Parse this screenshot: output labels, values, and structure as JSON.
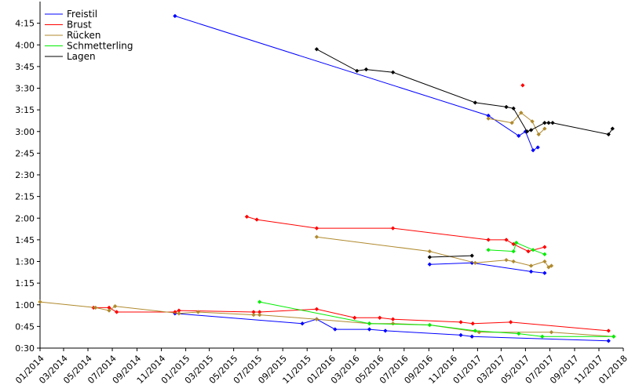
{
  "chart_data": {
    "type": "line",
    "title": "",
    "xlabel": "",
    "ylabel": "",
    "x_range": [
      "2014-01-01",
      "2018-01-01"
    ],
    "y_range": [
      "0:30",
      "4:30"
    ],
    "grid": false,
    "legend_position": "top-left",
    "x_tick_labels": [
      "01/2014",
      "03/2014",
      "05/2014",
      "07/2014",
      "09/2014",
      "11/2014",
      "01/2015",
      "03/2015",
      "05/2015",
      "07/2015",
      "09/2015",
      "11/2015",
      "01/2016",
      "03/2016",
      "05/2016",
      "07/2016",
      "09/2016",
      "11/2016",
      "01/2017",
      "03/2017",
      "05/2017",
      "07/2017",
      "09/2017",
      "11/2017",
      "01/2018"
    ],
    "y_tick_labels": [
      "0:30",
      "0:45",
      "1:00",
      "1:15",
      "1:30",
      "1:45",
      "2:00",
      "2:15",
      "2:30",
      "2:45",
      "3:00",
      "3:15",
      "3:30",
      "3:45",
      "4:00",
      "4:15"
    ],
    "series": [
      {
        "name": "Freistil",
        "color": "#0000ff",
        "lines": [
          {
            "points": [
              [
                "2014-12-05",
                "4:20"
              ],
              [
                "2017-01-28",
                "3:11"
              ],
              [
                "2017-04-14",
                "2:57"
              ],
              [
                "2017-05-01",
                "3:00"
              ],
              [
                "2017-05-20",
                "2:47"
              ],
              [
                "2017-06-01",
                "2:49"
              ]
            ]
          },
          {
            "points": [
              [
                "2016-09-03",
                "1:28"
              ],
              [
                "2016-12-18",
                "1:29"
              ],
              [
                "2017-05-15",
                "1:23"
              ],
              [
                "2017-06-18",
                "1:22"
              ]
            ]
          },
          {
            "points": [
              [
                "2014-12-05",
                "0:54"
              ],
              [
                "2015-10-20",
                "0:47"
              ],
              [
                "2015-11-25",
                "0:50"
              ],
              [
                "2016-01-10",
                "0:43"
              ],
              [
                "2016-04-05",
                "0:43"
              ],
              [
                "2016-05-15",
                "0:42"
              ],
              [
                "2016-11-20",
                "0:39"
              ],
              [
                "2016-12-18",
                "0:38"
              ],
              [
                "2017-11-25",
                "0:35"
              ]
            ]
          }
        ]
      },
      {
        "name": "Brust",
        "color": "#ff0000",
        "lines": [
          {
            "points": [
              [
                "2015-06-03",
                "2:01"
              ],
              [
                "2015-06-28",
                "1:59"
              ],
              [
                "2015-11-25",
                "1:53"
              ],
              [
                "2016-06-03",
                "1:53"
              ],
              [
                "2017-01-28",
                "1:45"
              ],
              [
                "2017-03-14",
                "1:45"
              ],
              [
                "2017-04-01",
                "1:42"
              ],
              [
                "2017-05-08",
                "1:37"
              ],
              [
                "2017-06-18",
                "1:40"
              ]
            ]
          },
          {
            "points": [
              [
                "2017-04-24",
                "3:32"
              ]
            ]
          },
          {
            "points": [
              [
                "2014-05-15",
                "0:58"
              ],
              [
                "2014-06-23",
                "0:58"
              ],
              [
                "2014-07-12",
                "0:55"
              ],
              [
                "2014-12-05",
                "0:55"
              ],
              [
                "2014-12-15",
                "0:56"
              ],
              [
                "2015-06-20",
                "0:55"
              ],
              [
                "2015-07-05",
                "0:55"
              ],
              [
                "2015-11-25",
                "0:57"
              ],
              [
                "2016-02-28",
                "0:51"
              ],
              [
                "2016-05-01",
                "0:51"
              ],
              [
                "2016-06-03",
                "0:50"
              ],
              [
                "2016-11-20",
                "0:48"
              ],
              [
                "2016-12-20",
                "0:47"
              ],
              [
                "2017-03-25",
                "0:48"
              ],
              [
                "2017-11-25",
                "0:42"
              ]
            ]
          }
        ]
      },
      {
        "name": "Rücken",
        "color": "#b08a2e",
        "lines": [
          {
            "points": [
              [
                "2017-01-28",
                "3:09"
              ],
              [
                "2017-03-28",
                "3:06"
              ],
              [
                "2017-04-20",
                "3:13"
              ],
              [
                "2017-05-18",
                "3:07"
              ],
              [
                "2017-06-03",
                "2:58"
              ],
              [
                "2017-06-18",
                "3:02"
              ]
            ]
          },
          {
            "points": [
              [
                "2015-11-25",
                "1:47"
              ],
              [
                "2016-09-03",
                "1:37"
              ],
              [
                "2016-12-26",
                "1:29"
              ],
              [
                "2017-03-14",
                "1:31"
              ],
              [
                "2017-04-01",
                "1:30"
              ],
              [
                "2017-05-15",
                "1:27"
              ],
              [
                "2017-06-18",
                "1:30"
              ],
              [
                "2017-06-28",
                "1:26"
              ],
              [
                "2017-07-05",
                "1:27"
              ]
            ]
          },
          {
            "points": [
              [
                "2014-01-01",
                "1:02"
              ],
              [
                "2014-05-20",
                "0:58"
              ],
              [
                "2014-06-23",
                "0:56"
              ],
              [
                "2014-07-08",
                "0:59"
              ],
              [
                "2014-12-15",
                "0:54"
              ],
              [
                "2015-02-01",
                "0:55"
              ],
              [
                "2015-06-20",
                "0:53"
              ],
              [
                "2015-07-05",
                "0:53"
              ],
              [
                "2015-11-25",
                "0:50"
              ],
              [
                "2016-04-05",
                "0:47"
              ],
              [
                "2016-06-03",
                "0:47"
              ],
              [
                "2016-09-03",
                "0:46"
              ],
              [
                "2017-01-05",
                "0:41"
              ],
              [
                "2017-07-05",
                "0:41"
              ],
              [
                "2017-12-08",
                "0:38"
              ]
            ]
          }
        ]
      },
      {
        "name": "Schmetterling",
        "color": "#00ee00",
        "lines": [
          {
            "points": [
              [
                "2017-01-28",
                "1:38"
              ],
              [
                "2017-04-01",
                "1:37"
              ],
              [
                "2017-04-08",
                "1:43"
              ],
              [
                "2017-05-20",
                "1:38"
              ],
              [
                "2017-06-18",
                "1:35"
              ]
            ]
          },
          {
            "points": [
              [
                "2015-07-05",
                "1:02"
              ],
              [
                "2016-04-05",
                "0:47"
              ],
              [
                "2016-09-03",
                "0:46"
              ],
              [
                "2016-12-26",
                "0:42"
              ],
              [
                "2017-04-14",
                "0:40"
              ],
              [
                "2017-06-12",
                "0:38"
              ],
              [
                "2017-12-08",
                "0:38"
              ]
            ]
          }
        ]
      },
      {
        "name": "Lagen",
        "color": "#000000",
        "lines": [
          {
            "points": [
              [
                "2015-11-25",
                "3:57"
              ],
              [
                "2016-03-05",
                "3:42"
              ],
              [
                "2016-03-28",
                "3:43"
              ],
              [
                "2016-06-03",
                "3:41"
              ],
              [
                "2016-12-26",
                "3:20"
              ],
              [
                "2017-03-14",
                "3:17"
              ],
              [
                "2017-04-01",
                "3:16"
              ],
              [
                "2017-05-05",
                "3:00"
              ],
              [
                "2017-05-15",
                "3:01"
              ],
              [
                "2017-06-18",
                "3:06"
              ],
              [
                "2017-06-28",
                "3:06"
              ],
              [
                "2017-07-08",
                "3:06"
              ],
              [
                "2017-11-25",
                "2:58"
              ],
              [
                "2017-12-05",
                "3:02"
              ]
            ]
          },
          {
            "points": [
              [
                "2016-09-03",
                "1:33"
              ],
              [
                "2016-12-18",
                "1:34"
              ]
            ]
          }
        ]
      }
    ]
  }
}
